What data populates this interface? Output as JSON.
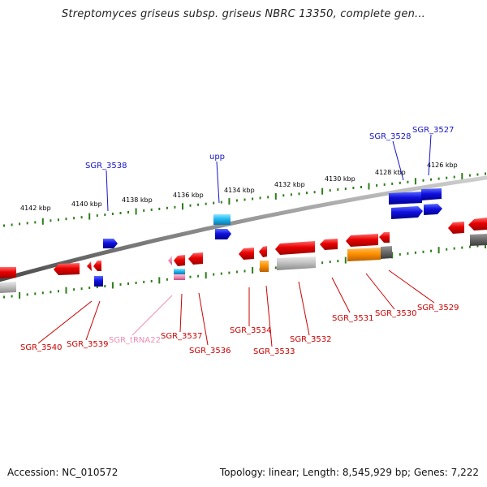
{
  "title": "Streptomyces griseus subsp. griseus NBRC 13350, complete gen...",
  "footer": {
    "accession": "Accession: NC_010572",
    "stats": "Topology: linear; Length: 8,545,929 bp; Genes: 7,222"
  },
  "colors": {
    "backbone": "#8c8c8c",
    "ticks": "#2e7d1a",
    "forward_label": "#1414c8",
    "reverse_label": "#cc0000",
    "trna_label": "#f08cb4"
  },
  "scale_labels": [
    "4142 kbp",
    "4140 kbp",
    "4138 kbp",
    "4136 kbp",
    "4134 kbp",
    "4132 kbp",
    "4130 kbp",
    "4128 kbp",
    "4126 kbp"
  ],
  "forward_genes": [
    {
      "name": "SGR_3538",
      "color": "#1414c8",
      "icon": "blue-arrow-right"
    },
    {
      "name": "upp",
      "color": "#1414c8",
      "icon": "cyan-arrow-right"
    },
    {
      "name": "SGR_3528",
      "color": "#1414c8",
      "icon": "blue-arrow-right"
    },
    {
      "name": "SGR_3527",
      "color": "#1414c8",
      "icon": "blue-arrow-right"
    }
  ],
  "reverse_genes": [
    {
      "name": "SGR_3540",
      "color": "#cc0000"
    },
    {
      "name": "SGR_3539",
      "color": "#cc0000"
    },
    {
      "name": "SGR_tRNA22",
      "color": "#f08cb4"
    },
    {
      "name": "SGR_3537",
      "color": "#cc0000"
    },
    {
      "name": "SGR_3536",
      "color": "#cc0000"
    },
    {
      "name": "SGR_3534",
      "color": "#cc0000"
    },
    {
      "name": "SGR_3533",
      "color": "#cc0000"
    },
    {
      "name": "SGR_3532",
      "color": "#cc0000"
    },
    {
      "name": "SGR_3531",
      "color": "#cc0000"
    },
    {
      "name": "SGR_3530",
      "color": "#cc0000"
    },
    {
      "name": "SGR_3529",
      "color": "#cc0000"
    }
  ]
}
